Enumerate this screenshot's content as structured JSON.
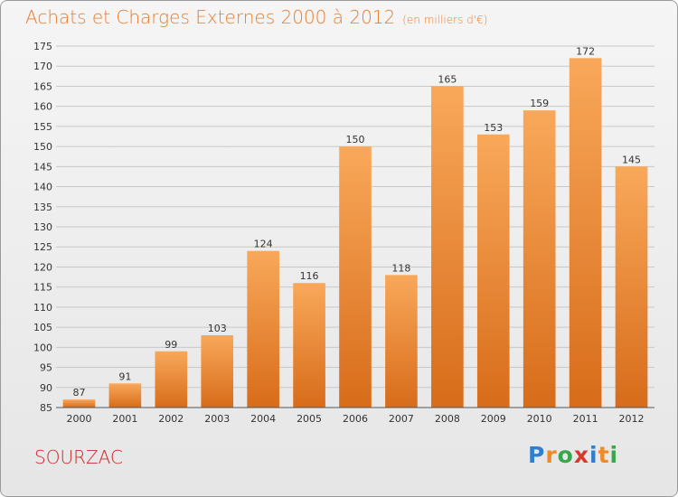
{
  "chart_data": {
    "type": "bar",
    "title": "Achats et Charges Externes 2000 à 2012",
    "subtitle": "(en milliers d'€)",
    "categories": [
      "2000",
      "2001",
      "2002",
      "2003",
      "2004",
      "2005",
      "2006",
      "2007",
      "2008",
      "2009",
      "2010",
      "2011",
      "2012"
    ],
    "values": [
      87,
      91,
      99,
      103,
      124,
      116,
      150,
      118,
      165,
      153,
      159,
      172,
      145
    ],
    "ylim": [
      85,
      175
    ],
    "yticks": [
      85,
      90,
      95,
      100,
      105,
      110,
      115,
      120,
      125,
      130,
      135,
      140,
      145,
      150,
      155,
      160,
      165,
      170,
      175
    ],
    "grid": true,
    "colors": {
      "bar_top": "#f9a85a",
      "bar_bottom": "#d76c1a",
      "title": "#f07a2a",
      "commune": "#cc2a2a"
    }
  },
  "commune": "SOURZAC",
  "logo": {
    "letters": [
      "P",
      "r",
      "o",
      "x",
      "i",
      "t",
      "i"
    ],
    "colors": [
      "#2f7fd0",
      "#f08a24",
      "#37a84a",
      "#d63a2a",
      "#2f7fd0",
      "#f08a24",
      "#37a84a"
    ]
  }
}
